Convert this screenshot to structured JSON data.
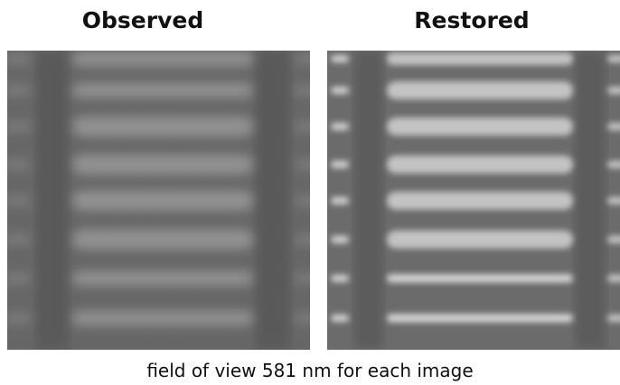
{
  "panels": [
    {
      "title": "Observed"
    },
    {
      "title": "Restored"
    }
  ],
  "caption": "field of view 581 nm for each image"
}
